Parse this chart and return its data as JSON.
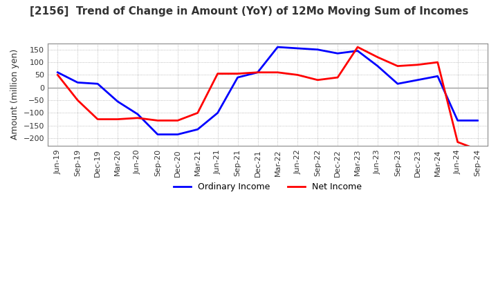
{
  "title": "[2156]  Trend of Change in Amount (YoY) of 12Mo Moving Sum of Incomes",
  "ylabel": "Amount (million yen)",
  "ylim": [
    -230,
    175
  ],
  "yticks": [
    -200,
    -150,
    -100,
    -50,
    0,
    50,
    100,
    150
  ],
  "x_labels": [
    "Jun-19",
    "Sep-19",
    "Dec-19",
    "Mar-20",
    "Jun-20",
    "Sep-20",
    "Dec-20",
    "Mar-21",
    "Jun-21",
    "Sep-21",
    "Dec-21",
    "Mar-22",
    "Jun-22",
    "Sep-22",
    "Dec-22",
    "Mar-23",
    "Jun-23",
    "Sep-23",
    "Dec-23",
    "Mar-24",
    "Jun-24",
    "Sep-24"
  ],
  "ordinary_income": [
    60,
    20,
    15,
    -55,
    -105,
    -185,
    -185,
    -165,
    -100,
    40,
    60,
    160,
    155,
    150,
    135,
    145,
    85,
    15,
    30,
    45,
    -130,
    -130
  ],
  "net_income": [
    50,
    -50,
    -125,
    -125,
    -120,
    -130,
    -130,
    -100,
    55,
    55,
    60,
    60,
    50,
    30,
    40,
    160,
    120,
    85,
    90,
    100,
    -215,
    -245
  ],
  "ordinary_color": "#0000ff",
  "net_color": "#ff0000",
  "line_width": 2.0,
  "grid_color": "#aaaaaa",
  "bg_color": "#ffffff",
  "title_color": "#333333",
  "zero_line_color": "#888888",
  "border_color": "#888888"
}
